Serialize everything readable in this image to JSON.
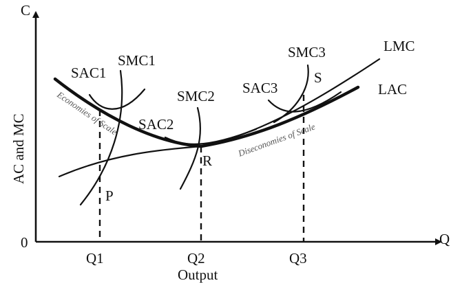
{
  "axes": {
    "y_label": "AC and MC",
    "y_end": "C",
    "x_label": "Output",
    "x_end": "Q",
    "origin": "0",
    "ticks": [
      "Q1",
      "Q2",
      "Q3"
    ]
  },
  "curves": {
    "sac1": "SAC1",
    "smc1": "SMC1",
    "sac2": "SAC2",
    "smc2": "SMC2",
    "sac3": "SAC3",
    "smc3": "SMC3",
    "lmc": "LMC",
    "lac": "LAC"
  },
  "points": {
    "p": "P",
    "r": "R",
    "s": "S"
  },
  "annotations": {
    "economies": "Economies of Scale",
    "diseconomies": "Diseconomies of Scale"
  }
}
